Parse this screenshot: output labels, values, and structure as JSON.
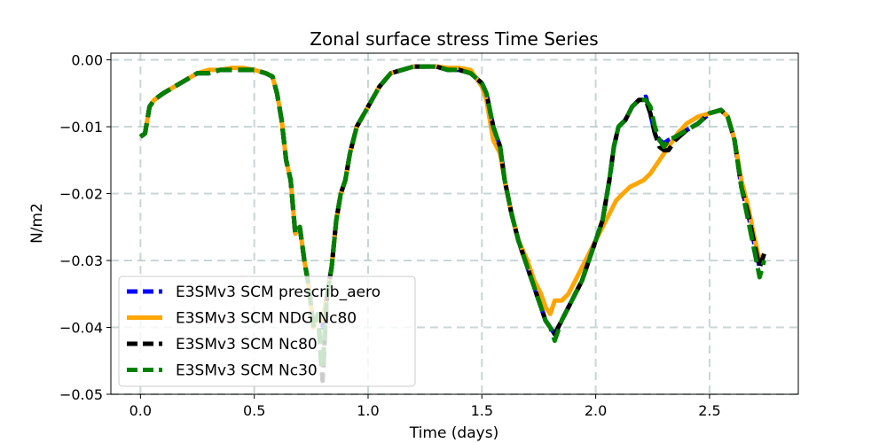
{
  "chart_data": {
    "type": "line",
    "title": "Zonal surface stress Time Series",
    "xlabel": "Time (days)",
    "ylabel": "N/m2",
    "xlim": [
      -0.13,
      2.89
    ],
    "ylim": [
      -0.05,
      0.001
    ],
    "xticks": [
      0.0,
      0.5,
      1.0,
      1.5,
      2.0,
      2.5
    ],
    "xtick_labels": [
      "0.0",
      "0.5",
      "1.0",
      "1.5",
      "2.0",
      "2.5"
    ],
    "yticks": [
      0.0,
      -0.01,
      -0.02,
      -0.03,
      -0.04,
      -0.05
    ],
    "ytick_labels": [
      "0.00",
      "−0.01",
      "−0.02",
      "−0.03",
      "−0.04",
      "−0.05"
    ],
    "grid": true,
    "legend_position": "lower-left",
    "series": [
      {
        "name": "E3SMv3 SCM prescrib_aero",
        "color": "#0000ff",
        "dash": "dashed",
        "x": [
          0.0,
          0.02,
          0.04,
          0.06,
          0.1,
          0.15,
          0.2,
          0.25,
          0.3,
          0.35,
          0.4,
          0.45,
          0.5,
          0.55,
          0.58,
          0.6,
          0.62,
          0.64,
          0.66,
          0.68,
          0.7,
          0.72,
          0.74,
          0.76,
          0.78,
          0.8,
          0.82,
          0.84,
          0.86,
          0.88,
          0.9,
          0.92,
          0.95,
          1.0,
          1.05,
          1.1,
          1.15,
          1.2,
          1.25,
          1.3,
          1.35,
          1.4,
          1.45,
          1.5,
          1.52,
          1.55,
          1.58,
          1.6,
          1.63,
          1.66,
          1.7,
          1.73,
          1.76,
          1.78,
          1.8,
          1.82,
          1.85,
          1.88,
          1.91,
          1.94,
          1.97,
          2.0,
          2.03,
          2.06,
          2.08,
          2.1,
          2.13,
          2.16,
          2.19,
          2.22,
          2.24,
          2.26,
          2.28,
          2.3,
          2.32,
          2.35,
          2.4,
          2.45,
          2.5,
          2.55,
          2.58,
          2.61,
          2.64,
          2.67,
          2.7,
          2.72,
          2.74
        ],
        "values": [
          -0.0115,
          -0.011,
          -0.007,
          -0.006,
          -0.005,
          -0.004,
          -0.003,
          -0.002,
          -0.002,
          -0.0015,
          -0.0015,
          -0.0015,
          -0.0015,
          -0.002,
          -0.0025,
          -0.005,
          -0.009,
          -0.015,
          -0.018,
          -0.026,
          -0.025,
          -0.03,
          -0.034,
          -0.04,
          -0.038,
          -0.04,
          -0.035,
          -0.031,
          -0.024,
          -0.02,
          -0.018,
          -0.014,
          -0.01,
          -0.007,
          -0.004,
          -0.002,
          -0.0015,
          -0.001,
          -0.001,
          -0.001,
          -0.0015,
          -0.0015,
          -0.002,
          -0.0035,
          -0.005,
          -0.01,
          -0.013,
          -0.018,
          -0.023,
          -0.027,
          -0.031,
          -0.034,
          -0.037,
          -0.039,
          -0.04,
          -0.041,
          -0.039,
          -0.037,
          -0.035,
          -0.033,
          -0.03,
          -0.027,
          -0.024,
          -0.018,
          -0.013,
          -0.01,
          -0.009,
          -0.007,
          -0.006,
          -0.0055,
          -0.008,
          -0.011,
          -0.012,
          -0.0125,
          -0.012,
          -0.0115,
          -0.0105,
          -0.0095,
          -0.008,
          -0.0075,
          -0.0085,
          -0.012,
          -0.019,
          -0.023,
          -0.028,
          -0.031,
          -0.029
        ]
      },
      {
        "name": "E3SMv3 SCM NDG Nc80",
        "color": "#ffa500",
        "dash": "solid",
        "x": [
          0.0,
          0.02,
          0.04,
          0.06,
          0.1,
          0.15,
          0.2,
          0.25,
          0.3,
          0.35,
          0.4,
          0.45,
          0.5,
          0.55,
          0.58,
          0.6,
          0.62,
          0.64,
          0.66,
          0.68,
          0.7,
          0.72,
          0.74,
          0.76,
          0.78,
          0.8,
          0.82,
          0.84,
          0.86,
          0.88,
          0.9,
          0.92,
          0.95,
          1.0,
          1.05,
          1.1,
          1.15,
          1.2,
          1.25,
          1.3,
          1.35,
          1.4,
          1.45,
          1.5,
          1.52,
          1.55,
          1.58,
          1.6,
          1.63,
          1.66,
          1.7,
          1.73,
          1.76,
          1.78,
          1.8,
          1.82,
          1.85,
          1.88,
          1.91,
          1.94,
          1.97,
          2.0,
          2.03,
          2.06,
          2.09,
          2.12,
          2.15,
          2.18,
          2.21,
          2.24,
          2.27,
          2.3,
          2.33,
          2.36,
          2.4,
          2.45,
          2.5,
          2.55,
          2.58,
          2.61,
          2.64,
          2.67,
          2.7,
          2.72,
          2.74
        ],
        "values": [
          -0.0115,
          -0.011,
          -0.007,
          -0.006,
          -0.005,
          -0.004,
          -0.003,
          -0.002,
          -0.0015,
          -0.0015,
          -0.0012,
          -0.0012,
          -0.0015,
          -0.002,
          -0.0025,
          -0.005,
          -0.009,
          -0.015,
          -0.018,
          -0.026,
          -0.025,
          -0.03,
          -0.034,
          -0.04,
          -0.038,
          -0.039,
          -0.035,
          -0.031,
          -0.024,
          -0.02,
          -0.018,
          -0.014,
          -0.01,
          -0.007,
          -0.004,
          -0.002,
          -0.0015,
          -0.001,
          -0.001,
          -0.001,
          -0.0012,
          -0.0012,
          -0.0015,
          -0.004,
          -0.006,
          -0.012,
          -0.014,
          -0.018,
          -0.023,
          -0.027,
          -0.03,
          -0.033,
          -0.035,
          -0.037,
          -0.038,
          -0.036,
          -0.036,
          -0.035,
          -0.033,
          -0.031,
          -0.029,
          -0.027,
          -0.025,
          -0.023,
          -0.021,
          -0.02,
          -0.019,
          -0.0185,
          -0.018,
          -0.017,
          -0.0155,
          -0.014,
          -0.0125,
          -0.011,
          -0.0095,
          -0.0085,
          -0.008,
          -0.0075,
          -0.0085,
          -0.012,
          -0.018,
          -0.022,
          -0.027,
          -0.03,
          -0.029
        ]
      },
      {
        "name": "E3SMv3 SCM Nc80",
        "color": "#000000",
        "dash": "dashed",
        "x": [
          0.0,
          0.02,
          0.04,
          0.06,
          0.1,
          0.15,
          0.2,
          0.25,
          0.3,
          0.35,
          0.4,
          0.45,
          0.5,
          0.55,
          0.58,
          0.6,
          0.62,
          0.64,
          0.66,
          0.68,
          0.7,
          0.72,
          0.74,
          0.76,
          0.78,
          0.8,
          0.82,
          0.84,
          0.86,
          0.88,
          0.9,
          0.92,
          0.95,
          1.0,
          1.05,
          1.1,
          1.15,
          1.2,
          1.25,
          1.3,
          1.35,
          1.4,
          1.45,
          1.5,
          1.52,
          1.55,
          1.58,
          1.6,
          1.63,
          1.66,
          1.7,
          1.73,
          1.76,
          1.78,
          1.8,
          1.82,
          1.85,
          1.88,
          1.91,
          1.94,
          1.97,
          2.0,
          2.03,
          2.06,
          2.08,
          2.1,
          2.13,
          2.16,
          2.19,
          2.22,
          2.24,
          2.26,
          2.28,
          2.3,
          2.32,
          2.35,
          2.4,
          2.45,
          2.5,
          2.55,
          2.58,
          2.61,
          2.64,
          2.67,
          2.7,
          2.72,
          2.74
        ],
        "values": [
          -0.0115,
          -0.011,
          -0.007,
          -0.006,
          -0.005,
          -0.004,
          -0.003,
          -0.002,
          -0.002,
          -0.0015,
          -0.0015,
          -0.0015,
          -0.0015,
          -0.002,
          -0.0025,
          -0.005,
          -0.009,
          -0.015,
          -0.018,
          -0.026,
          -0.025,
          -0.03,
          -0.034,
          -0.04,
          -0.038,
          -0.048,
          -0.035,
          -0.031,
          -0.024,
          -0.02,
          -0.018,
          -0.014,
          -0.01,
          -0.007,
          -0.004,
          -0.002,
          -0.0015,
          -0.001,
          -0.001,
          -0.001,
          -0.0015,
          -0.0015,
          -0.002,
          -0.0035,
          -0.005,
          -0.01,
          -0.013,
          -0.018,
          -0.023,
          -0.027,
          -0.031,
          -0.034,
          -0.037,
          -0.039,
          -0.04,
          -0.041,
          -0.039,
          -0.037,
          -0.035,
          -0.033,
          -0.03,
          -0.027,
          -0.024,
          -0.018,
          -0.013,
          -0.01,
          -0.009,
          -0.007,
          -0.006,
          -0.006,
          -0.008,
          -0.011,
          -0.013,
          -0.0135,
          -0.0135,
          -0.012,
          -0.0105,
          -0.0095,
          -0.008,
          -0.0075,
          -0.0085,
          -0.012,
          -0.019,
          -0.023,
          -0.028,
          -0.031,
          -0.029
        ]
      },
      {
        "name": "E3SMv3 SCM Nc30",
        "color": "#008000",
        "dash": "dashed",
        "x": [
          0.0,
          0.02,
          0.04,
          0.06,
          0.1,
          0.15,
          0.2,
          0.25,
          0.3,
          0.35,
          0.4,
          0.45,
          0.5,
          0.55,
          0.58,
          0.6,
          0.62,
          0.64,
          0.66,
          0.68,
          0.7,
          0.72,
          0.74,
          0.76,
          0.78,
          0.8,
          0.82,
          0.84,
          0.86,
          0.88,
          0.9,
          0.92,
          0.95,
          1.0,
          1.05,
          1.1,
          1.15,
          1.2,
          1.25,
          1.3,
          1.35,
          1.4,
          1.45,
          1.5,
          1.52,
          1.55,
          1.58,
          1.6,
          1.63,
          1.66,
          1.7,
          1.73,
          1.76,
          1.78,
          1.8,
          1.82,
          1.85,
          1.88,
          1.91,
          1.94,
          1.97,
          2.0,
          2.03,
          2.06,
          2.08,
          2.1,
          2.13,
          2.16,
          2.19,
          2.22,
          2.24,
          2.26,
          2.28,
          2.3,
          2.32,
          2.35,
          2.4,
          2.45,
          2.5,
          2.55,
          2.58,
          2.61,
          2.64,
          2.67,
          2.7,
          2.72,
          2.74
        ],
        "values": [
          -0.0115,
          -0.011,
          -0.007,
          -0.006,
          -0.005,
          -0.004,
          -0.003,
          -0.002,
          -0.002,
          -0.0015,
          -0.0015,
          -0.0015,
          -0.0015,
          -0.002,
          -0.0025,
          -0.005,
          -0.009,
          -0.015,
          -0.018,
          -0.026,
          -0.025,
          -0.03,
          -0.034,
          -0.04,
          -0.038,
          -0.046,
          -0.035,
          -0.031,
          -0.024,
          -0.02,
          -0.018,
          -0.014,
          -0.01,
          -0.007,
          -0.004,
          -0.002,
          -0.0015,
          -0.001,
          -0.001,
          -0.001,
          -0.0015,
          -0.0015,
          -0.002,
          -0.0035,
          -0.005,
          -0.01,
          -0.013,
          -0.018,
          -0.023,
          -0.027,
          -0.031,
          -0.034,
          -0.037,
          -0.039,
          -0.04,
          -0.042,
          -0.039,
          -0.037,
          -0.035,
          -0.033,
          -0.03,
          -0.027,
          -0.024,
          -0.018,
          -0.013,
          -0.01,
          -0.009,
          -0.007,
          -0.006,
          -0.006,
          -0.007,
          -0.01,
          -0.012,
          -0.013,
          -0.012,
          -0.0115,
          -0.0105,
          -0.0095,
          -0.008,
          -0.0075,
          -0.0085,
          -0.012,
          -0.019,
          -0.024,
          -0.029,
          -0.0325,
          -0.03
        ]
      }
    ]
  }
}
